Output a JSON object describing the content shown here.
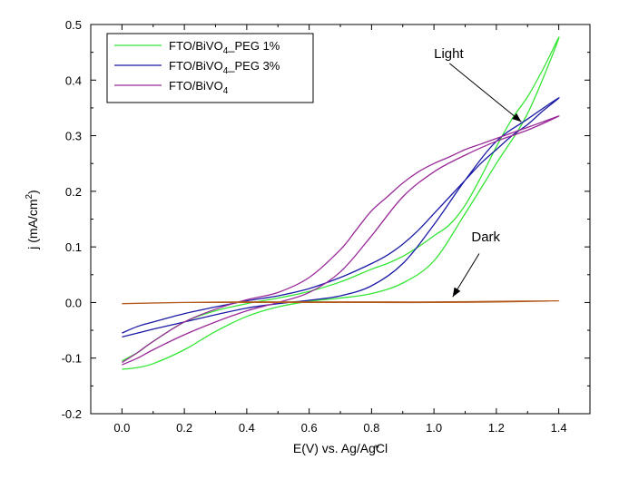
{
  "chart_data": {
    "type": "line",
    "xlabel": "E(V) vs. Ag/AgCl",
    "ylabel": "j (mA/cm²)",
    "xlim": [
      -0.1,
      1.5
    ],
    "ylim": [
      -0.2,
      0.5
    ],
    "x_ticks": [
      "0.0",
      "0.2",
      "0.4",
      "0.6",
      "0.8",
      "1.0",
      "1.2",
      "1.4"
    ],
    "y_ticks": [
      "-0.2",
      "-0.1",
      "0.0",
      "0.1",
      "0.2",
      "0.3",
      "0.4",
      "0.5"
    ],
    "grid": false,
    "legend_position": "top-left",
    "series": [
      {
        "name": "FTO/BiVO4_PEG 1%",
        "legend_main": "FTO/BiVO",
        "legend_sub": "4",
        "legend_tail": "_PEG 1%",
        "color": "#33e633",
        "x": [
          0.0,
          0.05,
          0.1,
          0.2,
          0.3,
          0.4,
          0.5,
          0.6,
          0.7,
          0.8,
          0.9,
          1.0,
          1.1,
          1.2,
          1.3,
          1.4,
          1.35,
          1.3,
          1.25,
          1.2,
          1.15,
          1.1,
          1.05,
          1.0,
          0.95,
          0.9,
          0.85,
          0.8,
          0.7,
          0.6,
          0.5,
          0.4,
          0.3,
          0.2,
          0.1,
          0.05,
          0.0
        ],
        "y": [
          -0.12,
          -0.117,
          -0.11,
          -0.085,
          -0.052,
          -0.025,
          -0.008,
          0.002,
          0.008,
          0.016,
          0.035,
          0.075,
          0.16,
          0.25,
          0.34,
          0.475,
          0.42,
          0.37,
          0.33,
          0.28,
          0.225,
          0.175,
          0.14,
          0.12,
          0.1,
          0.083,
          0.07,
          0.06,
          0.037,
          0.02,
          0.008,
          -0.002,
          -0.015,
          -0.035,
          -0.07,
          -0.09,
          -0.105
        ]
      },
      {
        "name": "FTO/BiVO4_PEG 3%",
        "legend_main": "FTO/BiVO",
        "legend_sub": "4",
        "legend_tail": "_PEG 3%",
        "color": "#1a1aa6",
        "x": [
          0.0,
          0.05,
          0.1,
          0.2,
          0.3,
          0.4,
          0.5,
          0.6,
          0.7,
          0.8,
          0.9,
          1.0,
          1.1,
          1.2,
          1.3,
          1.4,
          1.35,
          1.3,
          1.25,
          1.2,
          1.15,
          1.1,
          1.05,
          1.0,
          0.95,
          0.9,
          0.85,
          0.8,
          0.7,
          0.6,
          0.5,
          0.4,
          0.3,
          0.2,
          0.1,
          0.05,
          0.0
        ],
        "y": [
          -0.062,
          -0.055,
          -0.048,
          -0.035,
          -0.022,
          -0.01,
          -0.002,
          0.004,
          0.012,
          0.03,
          0.07,
          0.14,
          0.22,
          0.29,
          0.33,
          0.368,
          0.345,
          0.32,
          0.3,
          0.275,
          0.25,
          0.22,
          0.19,
          0.16,
          0.13,
          0.105,
          0.085,
          0.07,
          0.045,
          0.025,
          0.012,
          0.003,
          -0.008,
          -0.02,
          -0.035,
          -0.043,
          -0.055
        ]
      },
      {
        "name": "FTO/BiVO4",
        "legend_main": "FTO/BiVO",
        "legend_sub": "4",
        "legend_tail": "",
        "color": "#9a2a9a",
        "x": [
          0.0,
          0.05,
          0.1,
          0.2,
          0.3,
          0.4,
          0.5,
          0.6,
          0.7,
          0.8,
          0.9,
          1.0,
          1.1,
          1.2,
          1.3,
          1.4,
          1.35,
          1.3,
          1.25,
          1.2,
          1.15,
          1.1,
          1.05,
          1.0,
          0.95,
          0.9,
          0.85,
          0.8,
          0.75,
          0.7,
          0.6,
          0.5,
          0.4,
          0.3,
          0.2,
          0.1,
          0.05,
          0.0
        ],
        "y": [
          -0.112,
          -0.1,
          -0.085,
          -0.058,
          -0.035,
          -0.015,
          0.0,
          0.018,
          0.055,
          0.12,
          0.19,
          0.235,
          0.265,
          0.29,
          0.31,
          0.335,
          0.325,
          0.315,
          0.305,
          0.295,
          0.285,
          0.275,
          0.262,
          0.25,
          0.235,
          0.215,
          0.19,
          0.165,
          0.13,
          0.095,
          0.045,
          0.018,
          0.005,
          -0.012,
          -0.035,
          -0.07,
          -0.09,
          -0.108
        ]
      },
      {
        "name": "Dark",
        "legend": false,
        "color": "#b35a1f",
        "x": [
          0.0,
          0.1,
          0.2,
          0.4,
          0.6,
          0.8,
          1.0,
          1.2,
          1.4,
          1.2,
          1.0,
          0.8,
          0.6,
          0.4,
          0.2,
          0.0
        ],
        "y": [
          -0.002,
          -0.001,
          0.0,
          0.0,
          0.0,
          0.0,
          0.0,
          0.001,
          0.003,
          0.002,
          0.001,
          0.001,
          0.001,
          0.001,
          0.0,
          -0.002
        ]
      }
    ],
    "annotations": [
      {
        "text": "Light",
        "x": 1.0,
        "y": 0.44,
        "arrow_from": [
          1.05,
          0.43
        ],
        "arrow_to": [
          1.28,
          0.325
        ]
      },
      {
        "text": "Dark",
        "x": 1.12,
        "y": 0.11,
        "arrow_from": [
          1.145,
          0.088
        ],
        "arrow_to": [
          1.06,
          0.01
        ]
      }
    ],
    "stray_marks": [
      {
        "text": "'",
        "x": 1.62,
        "y": -0.246
      },
      {
        "text": "\"",
        "x": 0.81,
        "y": -0.272
      }
    ]
  }
}
